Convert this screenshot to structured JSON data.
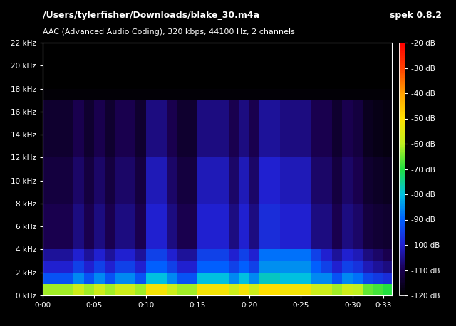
{
  "chart_data": {
    "type": "heatmap",
    "title": "/Users/tylerfisher/Downloads/blake_30.m4a",
    "subtitle": "AAC (Advanced Audio Coding), 320 kbps, 44100 Hz, 2 channels",
    "annotations": [
      "spek 0.8.2"
    ],
    "xlim": [
      0,
      33.8
    ],
    "xticks": [
      {
        "value": 0,
        "label": "0:00"
      },
      {
        "value": 5,
        "label": "0:05"
      },
      {
        "value": 10,
        "label": "0:10"
      },
      {
        "value": 15,
        "label": "0:15"
      },
      {
        "value": 20,
        "label": "0:20"
      },
      {
        "value": 25,
        "label": "0:25"
      },
      {
        "value": 30,
        "label": "0:30"
      },
      {
        "value": 33,
        "label": "0:33"
      }
    ],
    "ylim": [
      0,
      22
    ],
    "yticks": [
      {
        "value": 0,
        "label": "0 kHz"
      },
      {
        "value": 2,
        "label": "2 kHz"
      },
      {
        "value": 4,
        "label": "4 kHz"
      },
      {
        "value": 6,
        "label": "6 kHz"
      },
      {
        "value": 8,
        "label": "8 kHz"
      },
      {
        "value": 10,
        "label": "10 kHz"
      },
      {
        "value": 12,
        "label": "12 kHz"
      },
      {
        "value": 14,
        "label": "14 kHz"
      },
      {
        "value": 16,
        "label": "16 kHz"
      },
      {
        "value": 18,
        "label": "18 kHz"
      },
      {
        "value": 20,
        "label": "20 kHz"
      },
      {
        "value": 22,
        "label": "22 kHz"
      }
    ],
    "x_edges": [
      0,
      1,
      2,
      3,
      4,
      5,
      6,
      7,
      8,
      9,
      10,
      11,
      12,
      13,
      14,
      15,
      16,
      17,
      18,
      19,
      20,
      21,
      22,
      23,
      24,
      25,
      26,
      27,
      28,
      29,
      30,
      31,
      32,
      33,
      33.8
    ],
    "y_edges": [
      0,
      1,
      2,
      3,
      4,
      5,
      6,
      7,
      8,
      9,
      10,
      11,
      12,
      13,
      14,
      15,
      16,
      17,
      18,
      19,
      20,
      21,
      22
    ],
    "cells": [
      [
        -62,
        -62,
        -62,
        -58,
        -62,
        -58,
        -62,
        -58,
        -58,
        -62,
        -52,
        -52,
        -58,
        -62,
        -62,
        -52,
        -52,
        -52,
        -58,
        -52,
        -58,
        -50,
        -50,
        -52,
        -52,
        -52,
        -58,
        -58,
        -62,
        -58,
        -60,
        -66,
        -68,
        -70
      ],
      [
        -92,
        -92,
        -92,
        -86,
        -92,
        -86,
        -92,
        -86,
        -86,
        -92,
        -80,
        -80,
        -86,
        -92,
        -92,
        -80,
        -80,
        -80,
        -86,
        -80,
        -86,
        -78,
        -78,
        -80,
        -80,
        -80,
        -86,
        -86,
        -92,
        -86,
        -88,
        -94,
        -96,
        -98
      ],
      [
        -100,
        -100,
        -100,
        -95,
        -100,
        -95,
        -100,
        -95,
        -95,
        -100,
        -90,
        -90,
        -95,
        -100,
        -100,
        -90,
        -90,
        -90,
        -95,
        -90,
        -95,
        -85,
        -85,
        -85,
        -85,
        -85,
        -90,
        -95,
        -100,
        -95,
        -97,
        -102,
        -104,
        -106
      ],
      [
        -104,
        -104,
        -104,
        -100,
        -104,
        -100,
        -104,
        -100,
        -100,
        -104,
        -95,
        -95,
        -100,
        -104,
        -104,
        -95,
        -95,
        -95,
        -100,
        -95,
        -100,
        -88,
        -88,
        -88,
        -88,
        -88,
        -95,
        -100,
        -104,
        -100,
        -102,
        -106,
        -108,
        -110
      ],
      [
        -110,
        -110,
        -110,
        -106,
        -110,
        -106,
        -110,
        -106,
        -106,
        -110,
        -100,
        -100,
        -106,
        -110,
        -110,
        -100,
        -100,
        -100,
        -106,
        -100,
        -106,
        -98,
        -98,
        -100,
        -100,
        -100,
        -106,
        -106,
        -110,
        -106,
        -108,
        -112,
        -113,
        -114
      ],
      [
        -110,
        -110,
        -110,
        -106,
        -110,
        -106,
        -110,
        -106,
        -106,
        -110,
        -100,
        -100,
        -106,
        -110,
        -110,
        -100,
        -100,
        -100,
        -106,
        -100,
        -106,
        -98,
        -98,
        -100,
        -100,
        -100,
        -106,
        -106,
        -110,
        -106,
        -108,
        -112,
        -113,
        -114
      ],
      [
        -110,
        -110,
        -110,
        -106,
        -110,
        -106,
        -110,
        -106,
        -106,
        -110,
        -100,
        -100,
        -106,
        -110,
        -110,
        -100,
        -100,
        -100,
        -106,
        -100,
        -106,
        -98,
        -98,
        -100,
        -100,
        -100,
        -106,
        -106,
        -110,
        -106,
        -108,
        -112,
        -113,
        -114
      ],
      [
        -110,
        -110,
        -110,
        -106,
        -110,
        -106,
        -110,
        -106,
        -106,
        -110,
        -100,
        -100,
        -106,
        -110,
        -110,
        -100,
        -100,
        -100,
        -106,
        -100,
        -106,
        -98,
        -98,
        -100,
        -100,
        -100,
        -106,
        -106,
        -110,
        -106,
        -108,
        -112,
        -113,
        -114
      ],
      [
        -112,
        -112,
        -112,
        -108,
        -112,
        -108,
        -112,
        -108,
        -108,
        -112,
        -102,
        -102,
        -108,
        -112,
        -112,
        -102,
        -102,
        -102,
        -108,
        -102,
        -108,
        -100,
        -100,
        -102,
        -102,
        -102,
        -108,
        -108,
        -112,
        -108,
        -110,
        -114,
        -115,
        -116
      ],
      [
        -112,
        -112,
        -112,
        -108,
        -112,
        -108,
        -112,
        -108,
        -108,
        -112,
        -102,
        -102,
        -108,
        -112,
        -112,
        -102,
        -102,
        -102,
        -108,
        -102,
        -108,
        -100,
        -100,
        -102,
        -102,
        -102,
        -108,
        -108,
        -112,
        -108,
        -110,
        -114,
        -115,
        -116
      ],
      [
        -112,
        -112,
        -112,
        -108,
        -112,
        -108,
        -112,
        -108,
        -108,
        -112,
        -102,
        -102,
        -108,
        -112,
        -112,
        -102,
        -102,
        -102,
        -108,
        -102,
        -108,
        -100,
        -100,
        -102,
        -102,
        -102,
        -108,
        -108,
        -112,
        -108,
        -110,
        -114,
        -115,
        -116
      ],
      [
        -112,
        -112,
        -112,
        -108,
        -112,
        -108,
        -112,
        -108,
        -108,
        -112,
        -102,
        -102,
        -108,
        -112,
        -112,
        -102,
        -102,
        -102,
        -108,
        -102,
        -108,
        -100,
        -100,
        -102,
        -102,
        -102,
        -108,
        -108,
        -112,
        -108,
        -110,
        -114,
        -115,
        -116
      ],
      [
        -114,
        -114,
        -114,
        -110,
        -114,
        -110,
        -114,
        -110,
        -110,
        -114,
        -106,
        -106,
        -110,
        -114,
        -114,
        -106,
        -106,
        -106,
        -110,
        -106,
        -110,
        -104,
        -104,
        -106,
        -106,
        -106,
        -110,
        -110,
        -114,
        -110,
        -112,
        -116,
        -117,
        -118
      ],
      [
        -114,
        -114,
        -114,
        -110,
        -114,
        -110,
        -114,
        -110,
        -110,
        -114,
        -106,
        -106,
        -110,
        -114,
        -114,
        -106,
        -106,
        -106,
        -110,
        -106,
        -110,
        -104,
        -104,
        -106,
        -106,
        -106,
        -110,
        -110,
        -114,
        -110,
        -112,
        -116,
        -117,
        -118
      ],
      [
        -114,
        -114,
        -114,
        -110,
        -114,
        -110,
        -114,
        -110,
        -110,
        -114,
        -106,
        -106,
        -110,
        -114,
        -114,
        -106,
        -106,
        -106,
        -110,
        -106,
        -110,
        -104,
        -104,
        -106,
        -106,
        -106,
        -110,
        -110,
        -114,
        -110,
        -112,
        -116,
        -117,
        -118
      ],
      [
        -114,
        -114,
        -114,
        -110,
        -114,
        -110,
        -114,
        -110,
        -110,
        -114,
        -106,
        -106,
        -110,
        -114,
        -114,
        -106,
        -106,
        -106,
        -110,
        -106,
        -110,
        -104,
        -104,
        -106,
        -106,
        -106,
        -110,
        -110,
        -114,
        -110,
        -112,
        -116,
        -117,
        -118
      ],
      [
        -114,
        -114,
        -114,
        -110,
        -114,
        -110,
        -114,
        -110,
        -110,
        -114,
        -106,
        -106,
        -110,
        -114,
        -114,
        -106,
        -106,
        -106,
        -110,
        -106,
        -110,
        -104,
        -104,
        -106,
        -106,
        -106,
        -110,
        -110,
        -114,
        -110,
        -112,
        -116,
        -117,
        -118
      ],
      [
        -119,
        -119,
        -119,
        -119,
        -119,
        -119,
        -119,
        -119,
        -119,
        -119,
        -119,
        -119,
        -119,
        -119,
        -119,
        -119,
        -119,
        -119,
        -119,
        -119,
        -119,
        -119,
        -119,
        -119,
        -119,
        -119,
        -119,
        -119,
        -119,
        -119,
        -119,
        -119,
        -119,
        -119
      ],
      [
        -120,
        -120,
        -120,
        -120,
        -120,
        -120,
        -120,
        -120,
        -120,
        -120,
        -120,
        -120,
        -120,
        -120,
        -120,
        -120,
        -120,
        -120,
        -120,
        -120,
        -120,
        -120,
        -120,
        -120,
        -120,
        -120,
        -120,
        -120,
        -120,
        -120,
        -120,
        -120,
        -120,
        -120
      ],
      [
        -120,
        -120,
        -120,
        -120,
        -120,
        -120,
        -120,
        -120,
        -120,
        -120,
        -120,
        -120,
        -120,
        -120,
        -120,
        -120,
        -120,
        -120,
        -120,
        -120,
        -120,
        -120,
        -120,
        -120,
        -120,
        -120,
        -120,
        -120,
        -120,
        -120,
        -120,
        -120,
        -120,
        -120
      ],
      [
        -120,
        -120,
        -120,
        -120,
        -120,
        -120,
        -120,
        -120,
        -120,
        -120,
        -120,
        -120,
        -120,
        -120,
        -120,
        -120,
        -120,
        -120,
        -120,
        -120,
        -120,
        -120,
        -120,
        -120,
        -120,
        -120,
        -120,
        -120,
        -120,
        -120,
        -120,
        -120,
        -120,
        -120
      ],
      [
        -120,
        -120,
        -120,
        -120,
        -120,
        -120,
        -120,
        -120,
        -120,
        -120,
        -120,
        -120,
        -120,
        -120,
        -120,
        -120,
        -120,
        -120,
        -120,
        -120,
        -120,
        -120,
        -120,
        -120,
        -120,
        -120,
        -120,
        -120,
        -120,
        -120,
        -120,
        -120,
        -120,
        -120
      ]
    ],
    "colorbar": {
      "range": [
        -120,
        -20
      ],
      "ticks": [
        {
          "value": -20,
          "label": "-20 dB"
        },
        {
          "value": -30,
          "label": "-30 dB"
        },
        {
          "value": -40,
          "label": "-40 dB"
        },
        {
          "value": -50,
          "label": "-50 dB"
        },
        {
          "value": -60,
          "label": "-60 dB"
        },
        {
          "value": -70,
          "label": "-70 dB"
        },
        {
          "value": -80,
          "label": "-80 dB"
        },
        {
          "value": -90,
          "label": "-90 dB"
        },
        {
          "value": -100,
          "label": "-100 dB"
        },
        {
          "value": -110,
          "label": "-110 dB"
        },
        {
          "value": -120,
          "label": "-120 dB"
        }
      ]
    }
  }
}
